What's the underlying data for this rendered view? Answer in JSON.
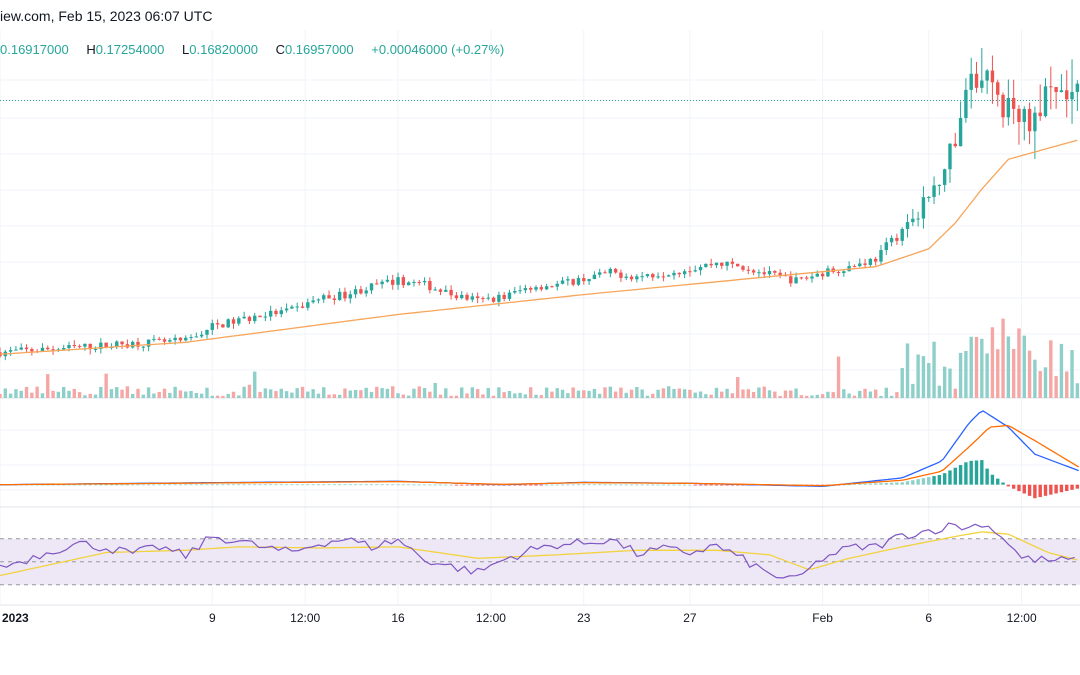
{
  "header": {
    "source_date": "iew.com, Feb 15, 2023 06:07 UTC"
  },
  "ohlc": {
    "open_value": "0.16917000",
    "high_label": "H",
    "high_value": "0.17254000",
    "low_label": "L",
    "low_value": "0.16820000",
    "close_label": "C",
    "close_value": "0.16957000",
    "change": "+0.00046000 (+0.27%)"
  },
  "colors": {
    "up": "#26a69a",
    "down": "#ef5350",
    "up_volume": "#8ed0c9",
    "down_volume": "#f4a7a5",
    "ma": "#f7a55a",
    "macd": "#2962ff",
    "signal": "#ff6d00",
    "rsi": "#7e57c2",
    "rsi_ma": "#f2d33e",
    "rsi_band": "#ede7f6",
    "grid": "#f0f3fa",
    "last_price_line": "#26a69a"
  },
  "chart_data": {
    "type": "candlestick",
    "x_tick_labels": [
      "2023",
      "9",
      "12:00",
      "16",
      "12:00",
      "23",
      "27",
      "Feb",
      "6",
      "12:00"
    ],
    "x_tick_days": [
      1,
      9,
      12.5,
      16,
      19.5,
      23,
      27,
      32,
      36,
      39.5
    ],
    "x_range_days": [
      1,
      41.7
    ],
    "price_range": [
      0.02,
      0.2
    ],
    "last_price": 0.16957,
    "price_path": [
      [
        1,
        0.043
      ],
      [
        4,
        0.0455
      ],
      [
        6,
        0.0475
      ],
      [
        8,
        0.0485
      ],
      [
        9,
        0.056
      ],
      [
        10,
        0.059
      ],
      [
        11,
        0.062
      ],
      [
        12,
        0.064
      ],
      [
        13,
        0.07
      ],
      [
        14,
        0.072
      ],
      [
        15,
        0.076
      ],
      [
        16,
        0.079
      ],
      [
        17,
        0.077
      ],
      [
        18,
        0.072
      ],
      [
        19,
        0.069
      ],
      [
        20,
        0.071
      ],
      [
        21,
        0.076
      ],
      [
        22,
        0.077
      ],
      [
        23,
        0.08
      ],
      [
        24,
        0.083
      ],
      [
        25,
        0.081
      ],
      [
        26,
        0.083
      ],
      [
        27,
        0.085
      ],
      [
        28,
        0.088
      ],
      [
        29,
        0.086
      ],
      [
        30,
        0.082
      ],
      [
        31,
        0.079
      ],
      [
        32,
        0.083
      ],
      [
        33,
        0.086
      ],
      [
        34,
        0.09
      ],
      [
        35,
        0.105
      ],
      [
        36,
        0.12
      ],
      [
        37,
        0.15
      ],
      [
        37.5,
        0.175
      ],
      [
        38,
        0.185
      ],
      [
        38.5,
        0.172
      ],
      [
        39,
        0.165
      ],
      [
        39.5,
        0.16
      ],
      [
        40,
        0.165
      ],
      [
        41,
        0.17
      ],
      [
        41.7,
        0.1696
      ]
    ],
    "spike": {
      "day": 38,
      "high": 0.196
    },
    "moving_average": [
      [
        1,
        0.042
      ],
      [
        8,
        0.048
      ],
      [
        16,
        0.062
      ],
      [
        23,
        0.072
      ],
      [
        30,
        0.081
      ],
      [
        34,
        0.086
      ],
      [
        36,
        0.095
      ],
      [
        37,
        0.108
      ],
      [
        38,
        0.125
      ],
      [
        39,
        0.14
      ],
      [
        41.7,
        0.15
      ]
    ],
    "macd_range": [
      -0.006,
      0.025
    ],
    "macd": [
      [
        1,
        0.0
      ],
      [
        9,
        0.0006
      ],
      [
        16,
        0.001
      ],
      [
        20,
        0.0
      ],
      [
        23,
        0.0007
      ],
      [
        27,
        0.0004
      ],
      [
        32,
        -0.0005
      ],
      [
        35,
        0.002
      ],
      [
        36.5,
        0.007
      ],
      [
        37.5,
        0.018
      ],
      [
        38,
        0.022
      ],
      [
        39,
        0.017
      ],
      [
        40,
        0.009
      ],
      [
        41.7,
        0.004
      ]
    ],
    "macd_signal": [
      [
        1,
        0.0
      ],
      [
        9,
        0.0005
      ],
      [
        16,
        0.0009
      ],
      [
        20,
        0.0001
      ],
      [
        23,
        0.0006
      ],
      [
        27,
        0.0004
      ],
      [
        32,
        -0.0003
      ],
      [
        35,
        0.0013
      ],
      [
        36.5,
        0.004
      ],
      [
        37.5,
        0.011
      ],
      [
        38.3,
        0.017
      ],
      [
        39,
        0.0175
      ],
      [
        40,
        0.013
      ],
      [
        41.7,
        0.005
      ]
    ],
    "rsi_range": [
      15,
      95
    ],
    "rsi_band": [
      30,
      70
    ],
    "rsi_mid": 50,
    "rsi": [
      [
        1,
        45
      ],
      [
        2,
        52
      ],
      [
        3,
        60
      ],
      [
        4,
        66
      ],
      [
        5,
        62
      ],
      [
        6,
        57
      ],
      [
        7,
        63
      ],
      [
        8,
        55
      ],
      [
        9,
        72
      ],
      [
        10,
        68
      ],
      [
        11,
        62
      ],
      [
        12,
        58
      ],
      [
        13,
        66
      ],
      [
        14,
        70
      ],
      [
        15,
        63
      ],
      [
        16,
        69
      ],
      [
        17,
        52
      ],
      [
        18,
        46
      ],
      [
        19,
        41
      ],
      [
        20,
        52
      ],
      [
        21,
        60
      ],
      [
        22,
        65
      ],
      [
        23,
        66
      ],
      [
        24,
        70
      ],
      [
        25,
        57
      ],
      [
        26,
        61
      ],
      [
        27,
        58
      ],
      [
        28,
        64
      ],
      [
        29,
        52
      ],
      [
        30,
        39
      ],
      [
        31,
        34
      ],
      [
        32,
        53
      ],
      [
        33,
        62
      ],
      [
        34,
        63
      ],
      [
        35,
        73
      ],
      [
        36,
        77
      ],
      [
        37,
        82
      ],
      [
        37.5,
        79
      ],
      [
        38,
        84
      ],
      [
        38.7,
        74
      ],
      [
        39.5,
        53
      ],
      [
        40.5,
        51
      ],
      [
        41.7,
        51
      ]
    ],
    "rsi_ma": [
      [
        1,
        38
      ],
      [
        3,
        48
      ],
      [
        5,
        58
      ],
      [
        8,
        60
      ],
      [
        10,
        63
      ],
      [
        13,
        62
      ],
      [
        16,
        63
      ],
      [
        19,
        53
      ],
      [
        22,
        56
      ],
      [
        25,
        60
      ],
      [
        28,
        60
      ],
      [
        30,
        56
      ],
      [
        31.5,
        43
      ],
      [
        33,
        53
      ],
      [
        35,
        63
      ],
      [
        37,
        72
      ],
      [
        38,
        76
      ],
      [
        39,
        74
      ],
      [
        40.5,
        58
      ],
      [
        41.7,
        51
      ]
    ]
  }
}
